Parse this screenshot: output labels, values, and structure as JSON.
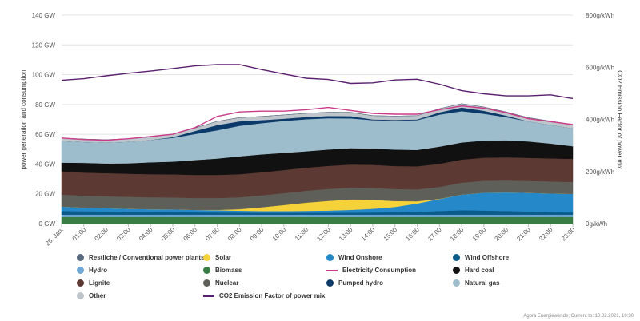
{
  "chart_data": {
    "type": "area",
    "x": [
      "25. Jan.",
      "01:00",
      "02:00",
      "03:00",
      "04:00",
      "05:00",
      "06:00",
      "07:00",
      "08:00",
      "09:00",
      "10:00",
      "11:00",
      "12:00",
      "13:00",
      "14:00",
      "15:00",
      "16:00",
      "17:00",
      "18:00",
      "19:00",
      "20:00",
      "21:00",
      "22:00",
      "23:00"
    ],
    "ylabel": "power generation and consumption",
    "y2label": "CO2 Emission Factor of power mix",
    "ylim": [
      0,
      140
    ],
    "y2lim": [
      0,
      800
    ],
    "yticks": [
      "0 GW",
      "20 GW",
      "40 GW",
      "60 GW",
      "80 GW",
      "100 GW",
      "120 GW",
      "140 GW"
    ],
    "y2ticks": [
      "0g/kWh",
      "200g/kWh",
      "400g/kWh",
      "600g/kWh",
      "800g/kWh"
    ],
    "grid": true,
    "stacked_series": [
      {
        "name": "Biomass",
        "color": "#3a7d44",
        "values": [
          4.5,
          4.5,
          4.5,
          4.5,
          4.5,
          4.5,
          4.5,
          4.5,
          4.5,
          4.5,
          4.5,
          4.5,
          4.5,
          4.5,
          4.5,
          4.5,
          4.5,
          4.5,
          4.5,
          4.5,
          4.5,
          4.5,
          4.5,
          4.5
        ]
      },
      {
        "name": "Hydro",
        "color": "#6fa8d6",
        "values": [
          1.5,
          1.5,
          1.5,
          1.5,
          1.5,
          1.5,
          1.5,
          1.5,
          1.5,
          1.5,
          1.5,
          1.5,
          1.5,
          1.5,
          1.5,
          1.5,
          1.5,
          1.5,
          1.5,
          1.5,
          1.5,
          1.5,
          1.5,
          1.5
        ]
      },
      {
        "name": "Wind Offshore",
        "color": "#0b5c8a",
        "values": [
          2.5,
          2.3,
          2.2,
          2.0,
          1.9,
          1.8,
          1.6,
          1.5,
          1.4,
          1.3,
          1.3,
          1.3,
          1.3,
          1.4,
          1.5,
          1.7,
          2.0,
          2.5,
          3.0,
          2.8,
          2.5,
          2.2,
          1.8,
          1.5
        ]
      },
      {
        "name": "Wind Onshore",
        "color": "#2488c9",
        "values": [
          3.0,
          2.5,
          2.2,
          2.0,
          1.8,
          1.8,
          1.6,
          1.5,
          1.3,
          1.2,
          1.2,
          1.3,
          1.5,
          1.8,
          2.5,
          3.5,
          5.5,
          8.0,
          10.5,
          12.0,
          12.5,
          12.5,
          12.5,
          12.5
        ]
      },
      {
        "name": "Solar",
        "color": "#f5d23a",
        "values": [
          0,
          0,
          0,
          0,
          0,
          0,
          0,
          0.2,
          1.0,
          2.5,
          4.0,
          5.5,
          6.5,
          7.0,
          6.0,
          4.0,
          1.5,
          0.2,
          0,
          0,
          0,
          0,
          0,
          0
        ]
      },
      {
        "name": "Nuclear",
        "color": "#5f5f5a",
        "values": [
          8.0,
          8.0,
          8.0,
          8.0,
          8.0,
          8.0,
          8.0,
          8.0,
          8.0,
          8.0,
          8.0,
          8.0,
          8.0,
          8.0,
          8.0,
          8.0,
          8.0,
          8.0,
          8.0,
          8.0,
          8.0,
          8.0,
          8.0,
          8.0
        ]
      },
      {
        "name": "Lignite",
        "color": "#5c3a33",
        "values": [
          15.5,
          15.5,
          15.5,
          15.5,
          15.5,
          15.5,
          15.5,
          15.5,
          15.5,
          15.5,
          15.5,
          15.5,
          15.5,
          15.5,
          15.5,
          15.5,
          15.5,
          15.5,
          15.5,
          15.5,
          15.5,
          15.5,
          15.5,
          15.5
        ]
      },
      {
        "name": "Hard coal",
        "color": "#111111",
        "values": [
          6.0,
          6.5,
          6.5,
          7.0,
          8.0,
          8.5,
          10.0,
          11.0,
          12.0,
          12.0,
          11.5,
          11.0,
          11.0,
          11.0,
          11.0,
          11.0,
          11.0,
          11.5,
          11.5,
          11.5,
          11.5,
          11.0,
          10.0,
          8.5
        ]
      },
      {
        "name": "Natural gas",
        "color": "#9dbccc",
        "values": [
          14.5,
          14.0,
          14.0,
          14.5,
          15.0,
          16.0,
          17.5,
          19.0,
          20.5,
          21.0,
          21.5,
          21.5,
          21.0,
          20.0,
          19.0,
          19.5,
          20.0,
          21.5,
          21.0,
          18.0,
          15.5,
          13.5,
          12.5,
          12.0
        ]
      },
      {
        "name": "Pumped hydro",
        "color": "#0b3a6a",
        "values": [
          0,
          0,
          0,
          0,
          0,
          0.5,
          2.0,
          3.5,
          3.0,
          2.0,
          1.5,
          1.5,
          1.5,
          1.5,
          0.5,
          0.5,
          0.5,
          1.5,
          2.5,
          2.0,
          1.0,
          0,
          0,
          0
        ]
      },
      {
        "name": "Other",
        "color": "#bfc6cb",
        "values": [
          2.0,
          2.0,
          2.0,
          2.0,
          2.0,
          2.0,
          2.0,
          2.5,
          2.5,
          2.5,
          2.5,
          2.5,
          2.5,
          2.5,
          2.5,
          2.5,
          2.5,
          2.5,
          2.5,
          2.5,
          2.5,
          2.5,
          2.5,
          2.5
        ]
      },
      {
        "name": "Restliche / Conventional power plants",
        "color": "#5a6a7e",
        "values": [
          0,
          0,
          0,
          0,
          0,
          0,
          0,
          0,
          0,
          0,
          0,
          0,
          0,
          0,
          0,
          0,
          0,
          0,
          0,
          0,
          0,
          0,
          0,
          0
        ]
      }
    ],
    "lines": [
      {
        "name": "Electricity Consumption",
        "axis": "left",
        "color": "#cc3a8a",
        "values": [
          57.5,
          56.5,
          56.0,
          57.0,
          58.5,
          60.0,
          64.5,
          72.0,
          75.0,
          75.5,
          75.5,
          76.5,
          78.0,
          76.0,
          74.0,
          73.5,
          73.5,
          76.5,
          79.0,
          77.5,
          74.5,
          70.5,
          68.5,
          66.5
        ]
      },
      {
        "name": "CO2 Emission Factor of power mix",
        "axis": "right",
        "color": "#5a1f6e",
        "values": [
          550,
          556,
          567,
          577,
          585,
          595,
          605,
          610,
          610,
          591,
          574,
          558,
          553,
          538,
          540,
          551,
          554,
          535,
          510,
          498,
          490,
          490,
          494,
          480
        ]
      }
    ],
    "legend": [
      {
        "label": "Restliche / Conventional power plants",
        "color": "#5a6a7e",
        "kind": "dot"
      },
      {
        "label": "Solar",
        "color": "#f5d23a",
        "kind": "dot"
      },
      {
        "label": "Wind Onshore",
        "color": "#2488c9",
        "kind": "dot"
      },
      {
        "label": "Wind Offshore",
        "color": "#0b5c8a",
        "kind": "dot"
      },
      {
        "label": "Hydro",
        "color": "#6fa8d6",
        "kind": "dot"
      },
      {
        "label": "Biomass",
        "color": "#3a7d44",
        "kind": "dot"
      },
      {
        "label": "Electricity Consumption",
        "color": "#cc3a8a",
        "kind": "line"
      },
      {
        "label": "Hard coal",
        "color": "#111111",
        "kind": "dot"
      },
      {
        "label": "Lignite",
        "color": "#5c3a33",
        "kind": "dot"
      },
      {
        "label": "Nuclear",
        "color": "#5f5f5a",
        "kind": "dot"
      },
      {
        "label": "Pumped hydro",
        "color": "#0b3a6a",
        "kind": "dot"
      },
      {
        "label": "Natural gas",
        "color": "#9dbccc",
        "kind": "dot"
      },
      {
        "label": "Other",
        "color": "#bfc6cb",
        "kind": "dot"
      },
      {
        "label": "CO2 Emission Factor of power mix",
        "color": "#5a1f6e",
        "kind": "line"
      }
    ]
  },
  "credit": "Agora Energiewende; Current to: 10.02.2021, 10:30"
}
